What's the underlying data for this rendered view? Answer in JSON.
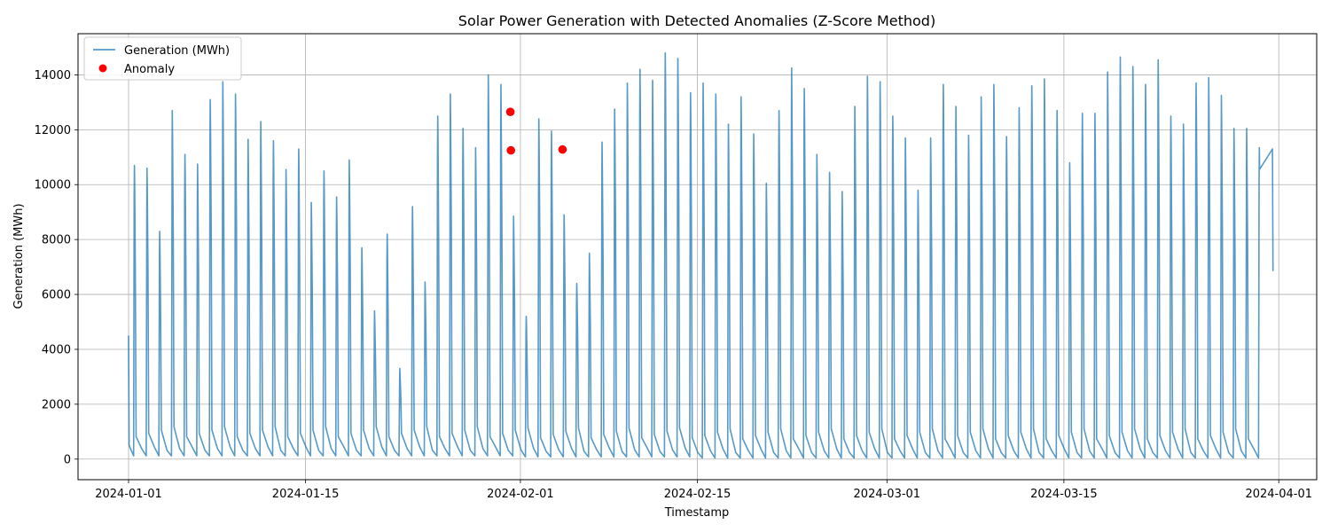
{
  "chart_data": {
    "type": "line",
    "title": "Solar Power Generation with Detected Anomalies (Z-Score Method)",
    "xlabel": "Timestamp",
    "ylabel": "Generation (MWh)",
    "xlim": [
      "2023-12-28",
      "2024-04-04"
    ],
    "ylim": [
      -750,
      15500
    ],
    "grid": true,
    "legend_position": "top-left",
    "x_ticks": [
      "2024-01-01",
      "2024-01-15",
      "2024-02-01",
      "2024-02-15",
      "2024-03-01",
      "2024-03-15",
      "2024-04-01"
    ],
    "y_ticks": [
      0,
      2000,
      4000,
      6000,
      8000,
      10000,
      12000,
      14000
    ],
    "series": [
      {
        "name": "Generation (MWh)",
        "color": "#1f77b4",
        "daily_peaks": [
          10700,
          10600,
          8300,
          12700,
          11100,
          10750,
          13100,
          13750,
          13300,
          11650,
          12300,
          11600,
          10550,
          11300,
          9350,
          10500,
          9550,
          10900,
          7700,
          5400,
          8200,
          3300,
          9200,
          6450,
          12500,
          13300,
          12050,
          11350,
          14000,
          13650,
          8850,
          5200,
          12400,
          11950,
          8900,
          6400,
          7500,
          11550,
          12750,
          13700,
          14200,
          13800,
          14800,
          14600,
          13350,
          13700,
          13300,
          12200,
          13200,
          11850,
          10050,
          12700,
          14250,
          13500,
          11100,
          10450,
          9750,
          12850,
          13950,
          13750,
          12500,
          11700,
          9800,
          11700,
          13650,
          12850,
          11800,
          13200,
          13650,
          11750,
          12800,
          13600,
          13850,
          12700,
          10800,
          12600,
          12600,
          14100,
          14650,
          14300,
          13650,
          14550,
          12500,
          12200,
          13700,
          13900,
          13250,
          12050,
          12050,
          11350
        ],
        "x": [
          "2024-01-01 00:00",
          "2024-01-01 01:00",
          "2024-03-31 12:00",
          "2024-03-31 13:00"
        ],
        "values": [
          4500,
          500,
          11300,
          6850
        ]
      },
      {
        "name": "Anomaly",
        "color": "#ff0000",
        "type": "scatter",
        "x": [
          "2024-01-31 05:00",
          "2024-01-31 06:00",
          "2024-02-04 08:00"
        ],
        "values": [
          12650,
          11250,
          11280
        ]
      }
    ]
  }
}
